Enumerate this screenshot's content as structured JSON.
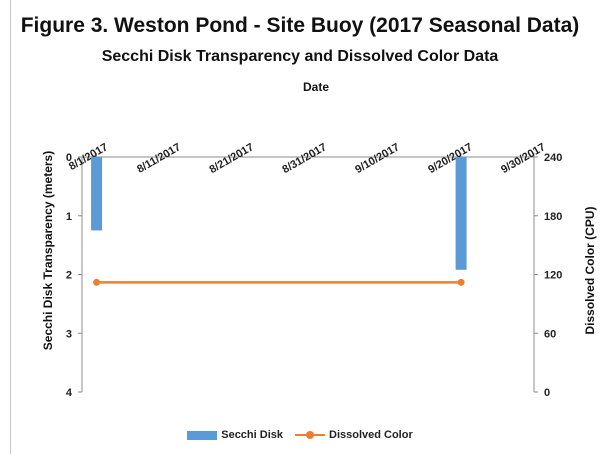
{
  "chart_data": {
    "type": "bar",
    "title": "Figure 3. Weston Pond - Site Buoy (2017 Seasonal Data)",
    "subtitle": "Secchi Disk Transparency and Dissolved Color Data",
    "xlabel": "Date",
    "ylabel": "Secchi Disk Transparency (meters)",
    "y2label": "Dissolved Color (CPU)",
    "x_ticks": [
      "8/1/2017",
      "8/11/2017",
      "8/21/2017",
      "8/31/2017",
      "9/10/2017",
      "9/20/2017",
      "9/30/2017"
    ],
    "xlim": [
      "2017-07-30",
      "2017-09-30"
    ],
    "x_axis_position": "top",
    "ylim": [
      0,
      4
    ],
    "y_inverted": true,
    "y_ticks": [
      0,
      1,
      2,
      3,
      4
    ],
    "y2lim": [
      0,
      240
    ],
    "y2_ticks": [
      0,
      60,
      120,
      180,
      240
    ],
    "series": [
      {
        "name": "Secchi Disk",
        "type": "bar",
        "axis": "left",
        "color": "#5b9bd5",
        "points": [
          {
            "x": "2017-08-01",
            "y": 1.25
          },
          {
            "x": "2017-09-20",
            "y": 1.92
          }
        ]
      },
      {
        "name": "Dissolved Color",
        "type": "line",
        "axis": "right",
        "color": "#ed7d31",
        "points": [
          {
            "x": "2017-08-01",
            "y": 112
          },
          {
            "x": "2017-09-20",
            "y": 112
          }
        ]
      }
    ],
    "grid": false,
    "legend": "bottom"
  }
}
